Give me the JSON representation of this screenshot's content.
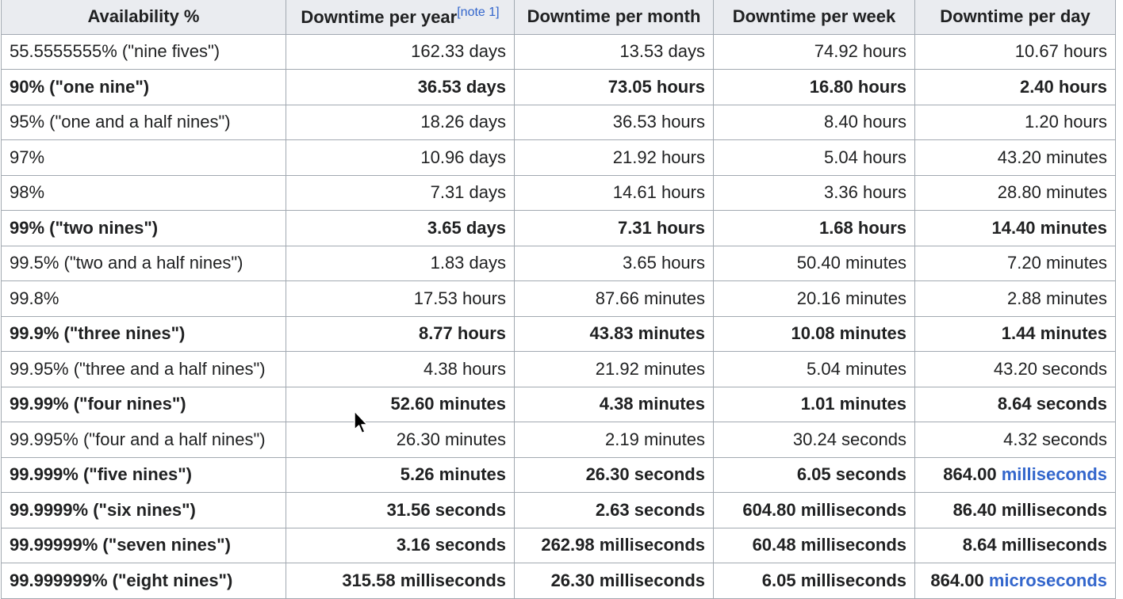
{
  "headers": {
    "availability": "Availability %",
    "year": "Downtime per year",
    "year_note": "[note 1]",
    "month": "Downtime per month",
    "week": "Downtime per week",
    "day": "Downtime per day"
  },
  "rows": [
    {
      "availability": "55.5555555% (\"nine fives\")",
      "year": "162.33 days",
      "month": "13.53 days",
      "week": "74.92 hours",
      "day_value": "10.67 hours",
      "day_unit": "",
      "bold": false
    },
    {
      "availability": "90% (\"one nine\")",
      "year": "36.53 days",
      "month": "73.05 hours",
      "week": "16.80 hours",
      "day_value": "2.40 hours",
      "day_unit": "",
      "bold": true
    },
    {
      "availability": "95% (\"one and a half nines\")",
      "year": "18.26 days",
      "month": "36.53 hours",
      "week": "8.40 hours",
      "day_value": "1.20 hours",
      "day_unit": "",
      "bold": false
    },
    {
      "availability": "97%",
      "year": "10.96 days",
      "month": "21.92 hours",
      "week": "5.04 hours",
      "day_value": "43.20 minutes",
      "day_unit": "",
      "bold": false
    },
    {
      "availability": "98%",
      "year": "7.31 days",
      "month": "14.61 hours",
      "week": "3.36 hours",
      "day_value": "28.80 minutes",
      "day_unit": "",
      "bold": false
    },
    {
      "availability": "99% (\"two nines\")",
      "year": "3.65 days",
      "month": "7.31 hours",
      "week": "1.68 hours",
      "day_value": "14.40 minutes",
      "day_unit": "",
      "bold": true
    },
    {
      "availability": "99.5% (\"two and a half nines\")",
      "year": "1.83 days",
      "month": "3.65 hours",
      "week": "50.40 minutes",
      "day_value": "7.20 minutes",
      "day_unit": "",
      "bold": false
    },
    {
      "availability": "99.8%",
      "year": "17.53 hours",
      "month": "87.66 minutes",
      "week": "20.16 minutes",
      "day_value": "2.88 minutes",
      "day_unit": "",
      "bold": false
    },
    {
      "availability": "99.9% (\"three nines\")",
      "year": "8.77 hours",
      "month": "43.83 minutes",
      "week": "10.08 minutes",
      "day_value": "1.44 minutes",
      "day_unit": "",
      "bold": true
    },
    {
      "availability": "99.95% (\"three and a half nines\")",
      "year": "4.38 hours",
      "month": "21.92 minutes",
      "week": "5.04 minutes",
      "day_value": "43.20 seconds",
      "day_unit": "",
      "bold": false
    },
    {
      "availability": "99.99% (\"four nines\")",
      "year": "52.60 minutes",
      "month": "4.38 minutes",
      "week": "1.01 minutes",
      "day_value": "8.64 seconds",
      "day_unit": "",
      "bold": true
    },
    {
      "availability": "99.995% (\"four and a half nines\")",
      "year": "26.30 minutes",
      "month": "2.19 minutes",
      "week": "30.24 seconds",
      "day_value": "4.32 seconds",
      "day_unit": "",
      "bold": false
    },
    {
      "availability": "99.999% (\"five nines\")",
      "year": "5.26 minutes",
      "month": "26.30 seconds",
      "week": "6.05 seconds",
      "day_value": "864.00",
      "day_unit": "milliseconds",
      "bold": true
    },
    {
      "availability": "99.9999% (\"six nines\")",
      "year": "31.56 seconds",
      "month": "2.63 seconds",
      "week": "604.80 milliseconds",
      "day_value": "86.40 milliseconds",
      "day_unit": "",
      "bold": true
    },
    {
      "availability": "99.99999% (\"seven nines\")",
      "year": "3.16 seconds",
      "month": "262.98 milliseconds",
      "week": "60.48 milliseconds",
      "day_value": "8.64 milliseconds",
      "day_unit": "",
      "bold": true
    },
    {
      "availability": "99.999999% (\"eight nines\")",
      "year": "315.58 milliseconds",
      "month": "26.30 milliseconds",
      "week": "6.05 milliseconds",
      "day_value": "864.00",
      "day_unit": "microseconds",
      "bold": true
    }
  ],
  "colors": {
    "link": "#3366cc",
    "header_bg": "#eaecf0",
    "border": "#a2a9b1",
    "text": "#202122"
  },
  "icons": {
    "pointer": "mouse-pointer-icon"
  }
}
